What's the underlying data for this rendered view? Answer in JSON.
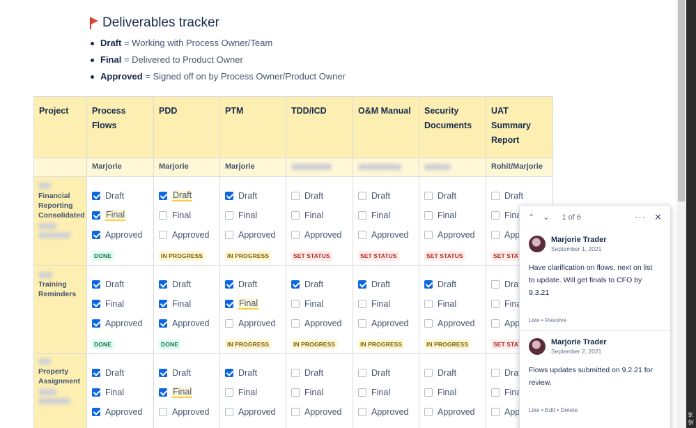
{
  "heading": {
    "title": "Deliverables tracker",
    "icon": "red-flag-icon"
  },
  "legend": [
    {
      "term": "Draft",
      "desc": " = Working with Process Owner/Team"
    },
    {
      "term": "Final",
      "desc": " = Delivered to Product Owner"
    },
    {
      "term": "Approved",
      "desc": " = Signed off on by Process Owner/Product Owner"
    }
  ],
  "table": {
    "headers": [
      "Project",
      "Process Flows",
      "PDD",
      "PTM",
      "TDD/ICD",
      "O&M Manual",
      "Security Documents",
      "UAT Summary Report"
    ],
    "owners": [
      "Marjorie",
      "Marjorie",
      "Marjorie",
      "",
      "",
      "",
      "Rohit/Marjorie"
    ],
    "rows": [
      {
        "project": "Financial Reporting Consolidated",
        "cells": [
          {
            "draft": true,
            "final": true,
            "approved": true,
            "hl": "final",
            "status": "DONE",
            "kind": "done"
          },
          {
            "draft": true,
            "final": false,
            "approved": false,
            "hl": "draft",
            "status": "IN PROGRESS",
            "kind": "prog"
          },
          {
            "draft": true,
            "final": false,
            "approved": false,
            "hl": "",
            "status": "IN PROGRESS",
            "kind": "prog"
          },
          {
            "draft": false,
            "final": false,
            "approved": false,
            "hl": "",
            "status": "SET STATUS",
            "kind": "set"
          },
          {
            "draft": false,
            "final": false,
            "approved": false,
            "hl": "",
            "status": "SET STATUS",
            "kind": "set"
          },
          {
            "draft": false,
            "final": false,
            "approved": false,
            "hl": "",
            "status": "SET STATUS",
            "kind": "set"
          },
          {
            "draft": false,
            "final": false,
            "approved": false,
            "hl": "",
            "status": "SET STATUS",
            "kind": "set"
          }
        ]
      },
      {
        "project": "Training Reminders",
        "cells": [
          {
            "draft": true,
            "final": true,
            "approved": true,
            "hl": "",
            "status": "DONE",
            "kind": "done"
          },
          {
            "draft": true,
            "final": true,
            "approved": true,
            "hl": "",
            "status": "DONE",
            "kind": "done"
          },
          {
            "draft": true,
            "final": true,
            "approved": false,
            "hl": "final",
            "status": "IN PROGRESS",
            "kind": "prog"
          },
          {
            "draft": true,
            "final": false,
            "approved": false,
            "hl": "",
            "status": "IN PROGRESS",
            "kind": "prog"
          },
          {
            "draft": true,
            "final": false,
            "approved": false,
            "hl": "",
            "status": "IN PROGRESS",
            "kind": "prog"
          },
          {
            "draft": true,
            "final": false,
            "approved": false,
            "hl": "",
            "status": "IN PROGRESS",
            "kind": "prog"
          },
          {
            "draft": false,
            "final": false,
            "approved": false,
            "hl": "",
            "status": "SET STATUS",
            "kind": "set"
          }
        ]
      },
      {
        "project": "Property Assignment",
        "cells": [
          {
            "draft": true,
            "final": true,
            "approved": true,
            "hl": "",
            "status": "",
            "kind": ""
          },
          {
            "draft": true,
            "final": true,
            "approved": false,
            "hl": "final",
            "status": "",
            "kind": ""
          },
          {
            "draft": true,
            "final": false,
            "approved": false,
            "hl": "",
            "status": "",
            "kind": ""
          },
          {
            "draft": false,
            "final": false,
            "approved": false,
            "hl": "",
            "status": "",
            "kind": ""
          },
          {
            "draft": false,
            "final": false,
            "approved": false,
            "hl": "",
            "status": "",
            "kind": ""
          },
          {
            "draft": false,
            "final": false,
            "approved": false,
            "hl": "",
            "status": "",
            "kind": ""
          },
          {
            "draft": false,
            "final": false,
            "approved": false,
            "hl": "",
            "status": "",
            "kind": ""
          }
        ]
      }
    ],
    "labels": {
      "draft": "Draft",
      "final": "Final",
      "approved": "Approved"
    }
  },
  "comments": {
    "pager": "1 of 6",
    "items": [
      {
        "author": "Marjorie Trader",
        "date": "September 1, 2021",
        "body": "Have clarification on flows, next on list to update.  Will get finals to CFO by 9.3.21",
        "actions": [
          "Like",
          "Resolve"
        ]
      },
      {
        "author": "Marjorie Trader",
        "date": "September 2, 2021",
        "body": "Flows updates submitted on 9.2.21 for review.",
        "actions": [
          "Like",
          "Edit",
          "Delete"
        ]
      }
    ]
  },
  "clock": {
    "time": "9:",
    "date": "9/"
  },
  "colors": {
    "header_bg": "#fdefb1",
    "owner_bg": "#fff7d6",
    "checkbox": "#0c66e4",
    "done": "#216e4e",
    "in_progress": "#7f5f01",
    "set_status": "#ae2e24"
  }
}
